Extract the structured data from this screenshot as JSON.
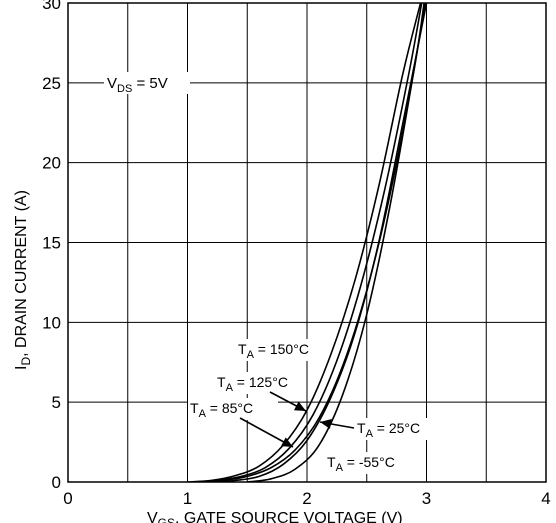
{
  "chart_data": {
    "type": "line",
    "xlabel_parts": {
      "main": "V",
      "sub": "GS",
      "rest": ", GATE SOURCE VOLTAGE (V)"
    },
    "ylabel_parts": {
      "main": "I",
      "sub": "D",
      "rest": ", DRAIN CURRENT (A)"
    },
    "xlim": [
      0,
      4
    ],
    "ylim": [
      0,
      30
    ],
    "x_ticks": [
      0,
      1,
      2,
      3,
      4
    ],
    "y_ticks": [
      0,
      5,
      10,
      15,
      20,
      25,
      30
    ],
    "grid": true,
    "annotation": {
      "main": "V",
      "sub": "DS",
      "rest": " = 5V"
    },
    "series": [
      {
        "name": "T_A = 150°C",
        "x": [
          1.0,
          1.2,
          1.4,
          1.6,
          1.8,
          2.0,
          2.2,
          2.4,
          2.6,
          2.8,
          2.95
        ],
        "y": [
          0,
          0.1,
          0.4,
          1.0,
          2.3,
          4.5,
          8.0,
          12.6,
          18.5,
          25.5,
          30
        ]
      },
      {
        "name": "T_A = 125°C",
        "x": [
          1.05,
          1.25,
          1.45,
          1.65,
          1.85,
          2.05,
          2.25,
          2.45,
          2.65,
          2.85,
          2.96
        ],
        "y": [
          0,
          0.1,
          0.35,
          0.9,
          2.1,
          4.2,
          7.6,
          12.3,
          18.3,
          25.5,
          30
        ]
      },
      {
        "name": "T_A = 85°C",
        "x": [
          1.1,
          1.3,
          1.5,
          1.7,
          1.9,
          2.1,
          2.3,
          2.5,
          2.7,
          2.9,
          2.98
        ],
        "y": [
          0,
          0.1,
          0.35,
          0.9,
          2.0,
          4.0,
          7.3,
          12.0,
          18.2,
          26.0,
          30
        ]
      },
      {
        "name": "T_A = 25°C",
        "x": [
          1.2,
          1.4,
          1.6,
          1.8,
          2.0,
          2.2,
          2.4,
          2.6,
          2.8,
          3.0
        ],
        "y": [
          0,
          0.1,
          0.35,
          1.1,
          2.6,
          5.3,
          9.3,
          15.0,
          22.4,
          30
        ]
      },
      {
        "name": "T_A = -55°C",
        "x": [
          1.5,
          1.7,
          1.9,
          2.1,
          2.3,
          2.5,
          2.7,
          2.9,
          3.0
        ],
        "y": [
          0,
          0.2,
          0.8,
          2.3,
          5.5,
          10.5,
          17.5,
          26.0,
          30.5
        ]
      }
    ],
    "curve_labels": [
      {
        "main": "T",
        "sub": "A",
        "rest": " = 150°C"
      },
      {
        "main": "T",
        "sub": "A",
        "rest": " = 125°C"
      },
      {
        "main": "T",
        "sub": "A",
        "rest": " = 85°C"
      },
      {
        "main": "T",
        "sub": "A",
        "rest": " = 25°C"
      },
      {
        "main": "T",
        "sub": "A",
        "rest": " = -55°C"
      }
    ],
    "colors": {
      "line": "#000000",
      "grid": "#000000",
      "background": "#ffffff"
    }
  }
}
